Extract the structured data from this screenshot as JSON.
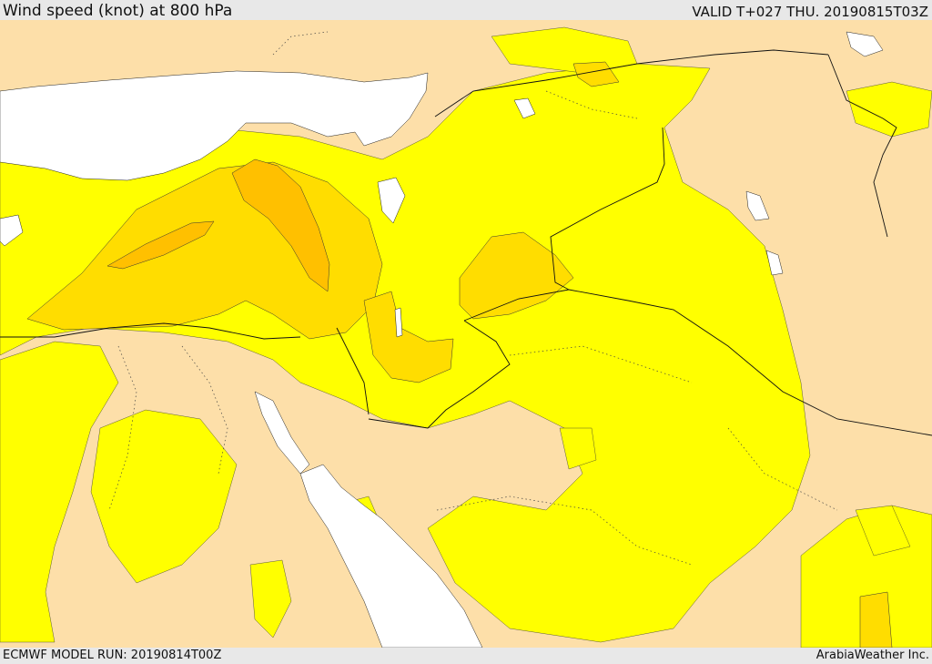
{
  "header": {
    "title": "Wind speed (knot) at 800 hPa",
    "valid": "VALID T+027 THU. 20190815T03Z"
  },
  "footer": {
    "model_run": "ECMWF MODEL RUN: 20190814T00Z",
    "credit": "ArabiaWeather Inc."
  },
  "colors": {
    "water": "#ffffff",
    "band_low": "#fddfa9",
    "band_mid": "#ffff00",
    "band_high": "#ffdd00",
    "band_higher": "#ffc000",
    "band_max": "#ffaa00",
    "bar_background": "#e8e8e8"
  }
}
